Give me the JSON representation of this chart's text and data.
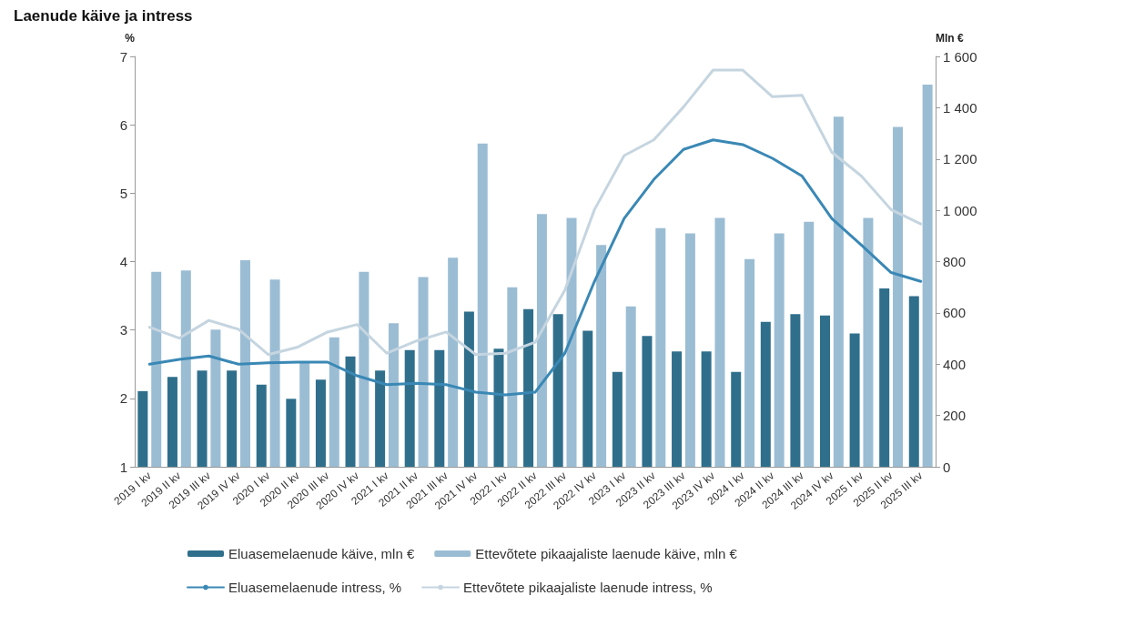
{
  "chart_data": {
    "type": "bar",
    "title": "Laenude käive ja intress",
    "ylabel": "%",
    "y2label": "Mln €",
    "categories": [
      "2019 I kv",
      "2019 II kv",
      "2019 III kv",
      "2019 IV kv",
      "2020 I kv",
      "2020 II kv",
      "2020 III kv",
      "2020 IV kv",
      "2021 I kv",
      "2021 II kv",
      "2021 III kv",
      "2021 IV kv",
      "2022 I kv",
      "2022 II kv",
      "2022 III kv",
      "2022 IV kv",
      "2023 I kv",
      "2023 II kv",
      "2023 III kv",
      "2023 IV kv",
      "2024 I kv",
      "2024 II kv",
      "2024 III kv",
      "2024 IV kv",
      "2025 I kv",
      "2025 II kv",
      "2025 III kv"
    ],
    "series": [
      {
        "name": "Eluasemelaenude käive, mln €",
        "axis": "y2",
        "color": "#2f6f8c",
        "values": [
          295,
          350,
          375,
          375,
          320,
          265,
          340,
          430,
          375,
          455,
          455,
          605,
          460,
          615,
          595,
          530,
          370,
          510,
          450,
          450,
          370,
          565,
          595,
          590,
          520,
          695,
          665
        ]
      },
      {
        "name": "Ettevõtete pikaajaliste laenude käive, mln €",
        "axis": "y2",
        "color": "#9bbdd4",
        "values": [
          760,
          765,
          535,
          805,
          730,
          410,
          505,
          760,
          560,
          740,
          815,
          1260,
          700,
          985,
          970,
          865,
          625,
          930,
          910,
          970,
          810,
          910,
          955,
          1365,
          970,
          1325,
          1490
        ]
      },
      {
        "name": "Eluasemelaenude intress, %",
        "type": "line",
        "color": "#3a88b5",
        "values": [
          2.5,
          2.57,
          2.62,
          2.5,
          2.52,
          2.53,
          2.53,
          2.33,
          2.2,
          2.22,
          2.2,
          2.09,
          2.05,
          2.09,
          2.66,
          3.71,
          4.63,
          5.2,
          5.64,
          5.78,
          5.71,
          5.51,
          5.25,
          4.63,
          4.24,
          3.84,
          3.71
        ]
      },
      {
        "name": "Ettevõtete pikaajaliste laenude intress, %",
        "type": "line",
        "color": "#c5d5e0",
        "values": [
          3.04,
          2.88,
          3.14,
          3.01,
          2.64,
          2.75,
          2.97,
          3.08,
          2.66,
          2.84,
          2.97,
          2.64,
          2.66,
          2.82,
          3.58,
          4.76,
          5.55,
          5.78,
          6.26,
          6.8,
          6.8,
          6.41,
          6.43,
          5.6,
          5.25,
          4.76,
          4.55
        ]
      }
    ],
    "ylim": [
      1,
      7
    ],
    "yticks": [
      1,
      2,
      3,
      4,
      5,
      6,
      7
    ],
    "y2lim": [
      0,
      1600
    ],
    "y2ticks": [
      0,
      200,
      400,
      600,
      800,
      {
        "value": 1000,
        "label": "1 000"
      },
      {
        "value": 1200,
        "label": "1 200"
      },
      {
        "value": 1400,
        "label": "1 400"
      },
      {
        "value": 1600,
        "label": "1 600"
      }
    ],
    "grid": false,
    "legend": "bottom",
    "marker": "none",
    "line_style": "solid"
  }
}
